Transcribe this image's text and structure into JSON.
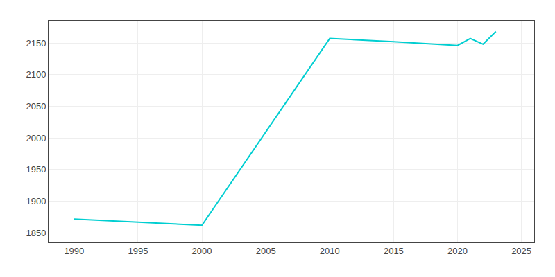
{
  "chart_data": {
    "type": "line",
    "x": [
      1990,
      2000,
      2010,
      2015,
      2020,
      2021,
      2022,
      2023
    ],
    "values": [
      1872,
      1862,
      2157,
      2152,
      2146,
      2157,
      2148,
      2168
    ],
    "color": "#00CED1",
    "xlim": [
      1988,
      2026
    ],
    "xticks": [
      1990,
      1995,
      2000,
      2005,
      2010,
      2015,
      2020,
      2025
    ],
    "ylim": [
      1835,
      2185
    ],
    "yticks": [
      1850,
      1900,
      1950,
      2000,
      2050,
      2100,
      2150
    ],
    "grid": true
  }
}
